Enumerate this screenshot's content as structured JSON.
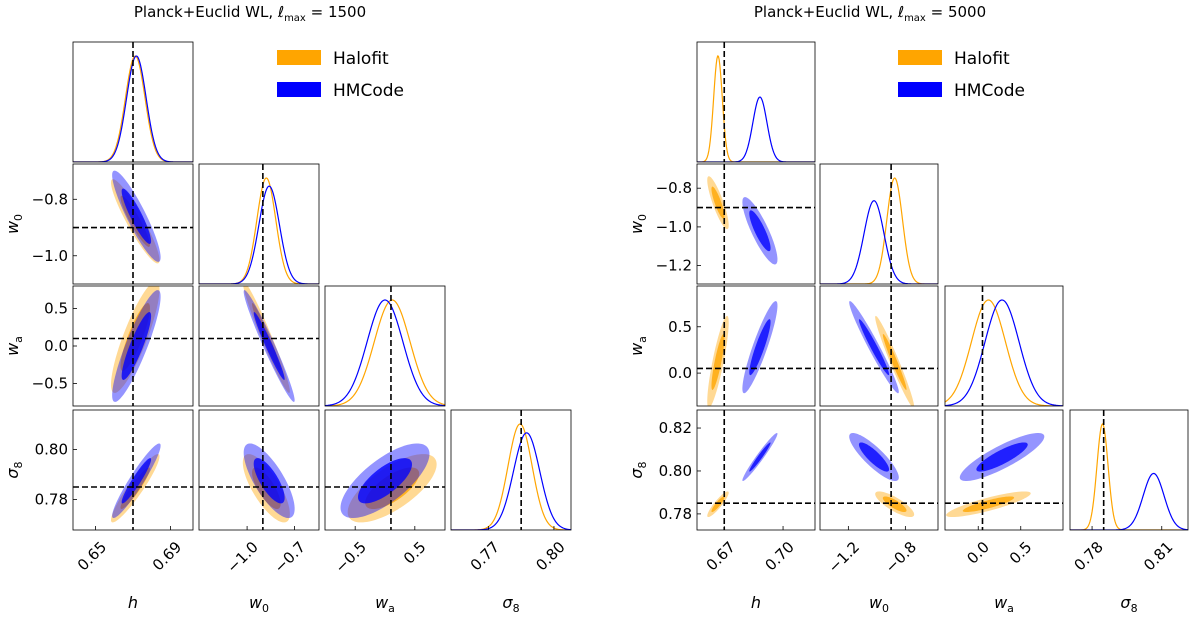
{
  "colors": {
    "halofit": "#ffa500",
    "hmcode": "#0000ff",
    "fiducial": "#000000"
  },
  "chart_data": [
    {
      "type": "triangle-corner-plot",
      "title": "Planck+Euclid WL, ℓmax = 1500",
      "title_main": "Planck+Euclid WL,",
      "title_ell": "ℓ",
      "title_sub": "max",
      "title_eq": " = 1500",
      "legend_position": "top-right",
      "parameters": [
        {
          "name": "h",
          "label": "h",
          "ticks": [
            0.65,
            0.69
          ],
          "tick_labels": [
            "0.65",
            "0.69"
          ],
          "range": [
            0.638,
            0.702
          ],
          "fiducial": 0.67
        },
        {
          "name": "w0",
          "label": "w",
          "label_sub": "0",
          "ticks": [
            -1.0,
            -0.7
          ],
          "tick_labels": [
            "−1.0",
            "−0.7"
          ],
          "range": [
            -1.305,
            -0.544
          ],
          "fiducial": -0.9,
          "row_ticks": [
            -0.8,
            -1.0
          ],
          "row_tick_labels": [
            "−0.8",
            "−1.0"
          ],
          "row_range": [
            -1.1,
            -0.675
          ]
        },
        {
          "name": "wa",
          "label": "w",
          "label_sub": "a",
          "ticks": [
            -0.5,
            0.5
          ],
          "tick_labels": [
            "−0.5",
            "0.5"
          ],
          "range": [
            -1.006,
            1.006
          ],
          "fiducial": 0.1,
          "row_ticks": [
            0.5,
            0.0,
            -0.5
          ],
          "row_tick_labels": [
            "0.5",
            "0.0",
            "−0.5"
          ],
          "row_range": [
            -0.8,
            0.8
          ]
        },
        {
          "name": "sigma8",
          "label": "σ",
          "label_sub": "8",
          "ticks": [
            0.77,
            0.8
          ],
          "tick_labels": [
            "0.77",
            "0.80"
          ],
          "range": [
            0.7529,
            0.8078
          ],
          "fiducial": 0.785,
          "row_ticks": [
            0.8,
            0.78
          ],
          "row_tick_labels": [
            "0.80",
            "0.78"
          ],
          "row_range": [
            0.7678,
            0.8158
          ]
        }
      ],
      "series": [
        {
          "name": "Halofit",
          "color": "#ffa500",
          "mean": {
            "h": 0.6712,
            "w0": -0.878,
            "wa": 0.12,
            "sigma8": 0.7845
          },
          "sigma": {
            "h": 0.0052,
            "w0": 0.06,
            "wa": 0.3,
            "sigma8": 0.0055
          },
          "corr": {
            "w0|h": -0.92,
            "wa|h": 0.85,
            "wa|w0": -0.97,
            "sigma8|h": 0.93,
            "sigma8|w0": -0.75,
            "sigma8|wa": 0.7
          }
        },
        {
          "name": "HMCode",
          "color": "#0000ff",
          "mean": {
            "h": 0.6718,
            "w0": -0.86,
            "wa": 0.0,
            "sigma8": 0.7875
          },
          "sigma": {
            "h": 0.0052,
            "w0": 0.065,
            "wa": 0.3,
            "sigma8": 0.006
          },
          "corr": {
            "w0|h": -0.9,
            "wa|h": 0.88,
            "wa|w0": -0.97,
            "sigma8|h": 0.94,
            "sigma8|w0": -0.75,
            "sigma8|wa": 0.72
          }
        }
      ]
    },
    {
      "type": "triangle-corner-plot",
      "title": "Planck+Euclid WL, ℓmax = 5000",
      "title_main": "Planck+Euclid WL,",
      "title_ell": "ℓ",
      "title_sub": "max",
      "title_eq": " = 5000",
      "legend_position": "top-right",
      "parameters": [
        {
          "name": "h",
          "label": "h",
          "ticks": [
            0.67,
            0.7
          ],
          "tick_labels": [
            "0.67",
            "0.70"
          ],
          "range": [
            0.6561,
            0.7163
          ],
          "fiducial": 0.67
        },
        {
          "name": "w0",
          "label": "w",
          "label_sub": "0",
          "ticks": [
            -1.2,
            -0.8
          ],
          "tick_labels": [
            "−1.2",
            "−0.8"
          ],
          "range": [
            -1.399,
            -0.571
          ],
          "fiducial": -0.9,
          "row_ticks": [
            -0.8,
            -1.0,
            -1.2
          ],
          "row_tick_labels": [
            "−0.8",
            "−1.0",
            "−1.2"
          ],
          "row_range": [
            -1.295,
            -0.675
          ]
        },
        {
          "name": "wa",
          "label": "w",
          "label_sub": "a",
          "ticks": [
            0.0,
            0.5
          ],
          "tick_labels": [
            "0.0",
            "0.5"
          ],
          "range": [
            -0.391,
            0.997
          ],
          "fiducial": 0.05,
          "row_ticks": [
            0.5,
            0.0
          ],
          "row_tick_labels": [
            "0.5",
            "0.0"
          ],
          "row_range": [
            -0.355,
            0.94
          ]
        },
        {
          "name": "sigma8",
          "label": "σ",
          "label_sub": "8",
          "ticks": [
            0.78,
            0.81
          ],
          "tick_labels": [
            "0.78",
            "0.81"
          ],
          "range": [
            0.7705,
            0.8213
          ],
          "fiducial": 0.785,
          "row_ticks": [
            0.82,
            0.8,
            0.78
          ],
          "row_tick_labels": [
            "0.82",
            "0.80",
            "0.78"
          ],
          "row_range": [
            0.7725,
            0.8284
          ]
        }
      ],
      "series": [
        {
          "name": "Halofit",
          "color": "#ffa500",
          "mean": {
            "h": 0.6668,
            "w0": -0.875,
            "wa": 0.12,
            "sigma8": 0.7845
          },
          "sigma": {
            "h": 0.0022,
            "w0": 0.055,
            "wa": 0.2,
            "sigma8": 0.0024
          },
          "corr": {
            "w0|h": -0.85,
            "wa|h": 0.85,
            "wa|w0": -0.97,
            "sigma8|h": 0.9,
            "sigma8|w0": -0.8,
            "sigma8|wa": 0.85
          }
        },
        {
          "name": "HMCode",
          "color": "#0000ff",
          "mean": {
            "h": 0.6882,
            "w0": -1.02,
            "wa": 0.28,
            "sigma8": 0.8065
          },
          "sigma": {
            "h": 0.0036,
            "w0": 0.07,
            "wa": 0.2,
            "sigma8": 0.0045
          },
          "corr": {
            "w0|h": -0.85,
            "wa|h": 0.9,
            "wa|w0": -0.97,
            "sigma8|h": 0.97,
            "sigma8|w0": -0.85,
            "sigma8|wa": 0.85
          }
        }
      ]
    }
  ]
}
